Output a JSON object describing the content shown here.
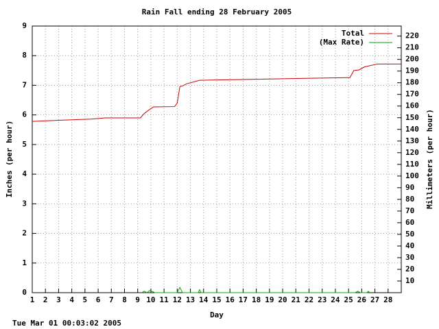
{
  "chart_data": {
    "type": "line",
    "title": "Rain Fall ending 28 February 2005",
    "xlabel": "Day",
    "ylabel": "Inches (per hour)",
    "y2label": "Millimeters (per hour)",
    "footer": "Tue Mar 01 00:03:02 2005",
    "xlim": [
      1,
      29
    ],
    "xticks": [
      1,
      2,
      3,
      4,
      5,
      6,
      7,
      8,
      9,
      10,
      11,
      12,
      13,
      14,
      15,
      16,
      17,
      18,
      19,
      20,
      21,
      22,
      23,
      24,
      25,
      26,
      27,
      28
    ],
    "ylim": [
      0,
      9
    ],
    "yticks": [
      0,
      1,
      2,
      3,
      4,
      5,
      6,
      7,
      8,
      9
    ],
    "y2lim": [
      0,
      228.6
    ],
    "y2ticks": [
      10,
      20,
      30,
      40,
      50,
      60,
      70,
      80,
      90,
      100,
      110,
      120,
      130,
      140,
      150,
      160,
      170,
      180,
      190,
      200,
      210,
      220
    ],
    "grid": true,
    "legend": "upper right",
    "series": [
      {
        "name": "Total",
        "color": "#cc0000",
        "x": [
          1,
          3,
          5.5,
          6.5,
          9.2,
          9.5,
          9.8,
          10.2,
          11.8,
          12.0,
          12.2,
          12.5,
          12.7,
          13.7,
          17.6,
          22.1,
          25.1,
          25.4,
          25.8,
          26.2,
          27.2,
          29
        ],
        "values": [
          5.78,
          5.82,
          5.86,
          5.9,
          5.9,
          6.05,
          6.15,
          6.27,
          6.28,
          6.4,
          6.95,
          7.0,
          7.05,
          7.17,
          7.2,
          7.24,
          7.26,
          7.5,
          7.52,
          7.62,
          7.72,
          7.72
        ]
      },
      {
        "name": "(Max Rate)",
        "color": "#00aa00",
        "x": [
          9.3,
          9.5,
          9.7,
          9.9,
          10.1,
          10.3,
          12.0,
          12.2,
          12.4,
          13.6,
          13.7,
          13.8,
          25.5,
          25.7,
          25.9,
          26.4,
          26.5,
          26.6
        ],
        "values": [
          0,
          0.05,
          0,
          0.07,
          0.04,
          0,
          0,
          0.18,
          0,
          0,
          0.1,
          0,
          0,
          0.05,
          0,
          0,
          0.05,
          0
        ]
      }
    ]
  }
}
